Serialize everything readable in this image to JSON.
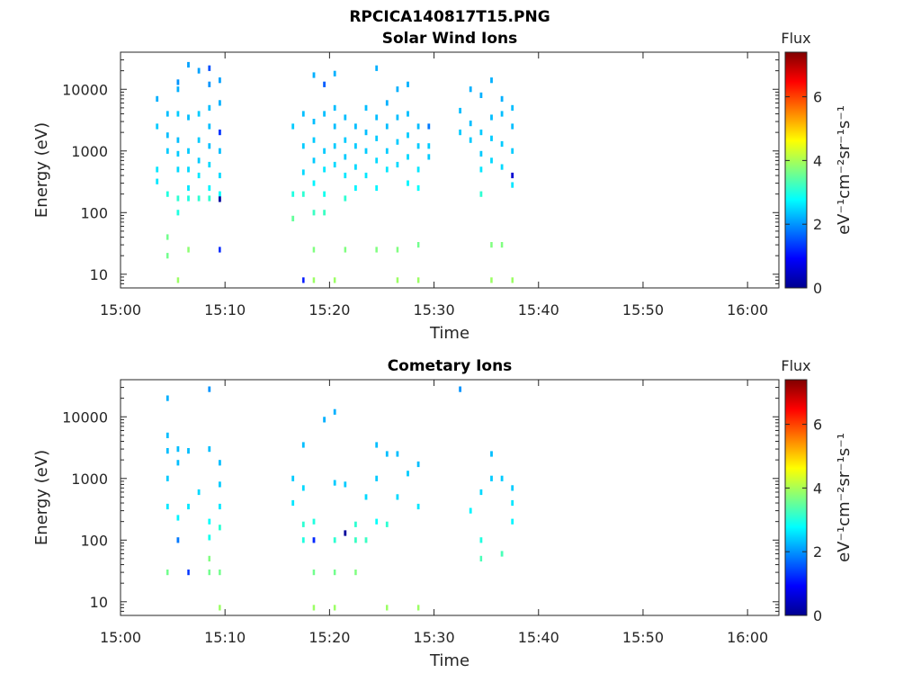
{
  "figure_title": "RPCICA140817T15.PNG",
  "chart_data": [
    {
      "type": "heatmap",
      "title": "Solar Wind Ions",
      "xlabel": "Time",
      "ylabel": "Energy (eV)",
      "xlim": [
        "15:00",
        "16:03"
      ],
      "x_ticks": [
        "15:00",
        "15:10",
        "15:20",
        "15:30",
        "15:40",
        "15:50",
        "16:00"
      ],
      "ylim": [
        6,
        40000
      ],
      "y_scale": "log",
      "y_ticks": [
        10,
        100,
        1000,
        10000
      ],
      "y_tick_labels": [
        "10",
        "100",
        "1000",
        "10000"
      ],
      "colorbar": {
        "label": "Flux",
        "unit_label": "eV⁻¹cm⁻²sr⁻¹s⁻¹",
        "range": [
          0,
          7.4
        ],
        "ticks": [
          0,
          2,
          4,
          6
        ],
        "colormap": "jet"
      },
      "points": [
        [
          "15:03",
          7000,
          2.2
        ],
        [
          "15:03",
          2500,
          2.4
        ],
        [
          "15:04",
          4000,
          2.3
        ],
        [
          "15:04",
          1800,
          2.3
        ],
        [
          "15:04",
          1000,
          2.4
        ],
        [
          "15:03",
          500,
          2.6
        ],
        [
          "15:03",
          320,
          2.6
        ],
        [
          "15:04",
          200,
          3.0
        ],
        [
          "15:04",
          20,
          3.6
        ],
        [
          "15:04",
          40,
          3.6
        ],
        [
          "15:05",
          10000,
          2.2
        ],
        [
          "15:05",
          13000,
          2.0
        ],
        [
          "15:05",
          4000,
          2.4
        ],
        [
          "15:05",
          1500,
          2.3
        ],
        [
          "15:05",
          900,
          2.4
        ],
        [
          "15:05",
          500,
          2.5
        ],
        [
          "15:05",
          170,
          3.1
        ],
        [
          "15:05",
          100,
          3.0
        ],
        [
          "15:05",
          8,
          3.9
        ],
        [
          "15:06",
          25000,
          2.1
        ],
        [
          "15:06",
          3500,
          2.3
        ],
        [
          "15:06",
          1000,
          2.4
        ],
        [
          "15:06",
          500,
          2.5
        ],
        [
          "15:06",
          250,
          2.6
        ],
        [
          "15:06",
          170,
          3.0
        ],
        [
          "15:06",
          25,
          3.8
        ],
        [
          "15:07",
          20000,
          2.1
        ],
        [
          "15:07",
          4000,
          2.4
        ],
        [
          "15:07",
          1500,
          2.4
        ],
        [
          "15:07",
          700,
          2.4
        ],
        [
          "15:07",
          400,
          2.6
        ],
        [
          "15:07",
          170,
          3.1
        ],
        [
          "15:08",
          12000,
          2.0
        ],
        [
          "15:08",
          5000,
          2.3
        ],
        [
          "15:08",
          2500,
          2.3
        ],
        [
          "15:08",
          1200,
          2.3
        ],
        [
          "15:08",
          600,
          2.5
        ],
        [
          "15:08",
          250,
          2.7
        ],
        [
          "15:08",
          170,
          3.1
        ],
        [
          "15:08",
          22000,
          1.5
        ],
        [
          "15:09",
          2000,
          1.3
        ],
        [
          "15:09",
          1000,
          2.3
        ],
        [
          "15:09",
          400,
          2.5
        ],
        [
          "15:09",
          200,
          2.8
        ],
        [
          "15:09",
          165,
          0.2
        ],
        [
          "15:09",
          25,
          1.2
        ],
        [
          "15:09",
          14000,
          2.1
        ],
        [
          "15:09",
          6000,
          2.2
        ],
        [
          "15:16",
          2500,
          2.4
        ],
        [
          "15:16",
          200,
          3.0
        ],
        [
          "15:16",
          80,
          3.5
        ],
        [
          "15:17",
          4000,
          2.3
        ],
        [
          "15:17",
          1200,
          2.4
        ],
        [
          "15:17",
          450,
          2.5
        ],
        [
          "15:17",
          200,
          3.1
        ],
        [
          "15:17",
          8,
          1.1
        ],
        [
          "15:18",
          17000,
          2.2
        ],
        [
          "15:18",
          3000,
          2.3
        ],
        [
          "15:18",
          1500,
          2.4
        ],
        [
          "15:18",
          700,
          2.4
        ],
        [
          "15:18",
          300,
          2.7
        ],
        [
          "15:18",
          100,
          3.2
        ],
        [
          "15:18",
          8,
          3.9
        ],
        [
          "15:18",
          25,
          3.7
        ],
        [
          "15:19",
          12000,
          1.6
        ],
        [
          "15:19",
          4000,
          2.3
        ],
        [
          "15:19",
          1000,
          2.4
        ],
        [
          "15:19",
          500,
          2.6
        ],
        [
          "15:19",
          200,
          2.9
        ],
        [
          "15:19",
          100,
          3.2
        ],
        [
          "15:20",
          18000,
          2.2
        ],
        [
          "15:20",
          5000,
          2.3
        ],
        [
          "15:20",
          2500,
          2.3
        ],
        [
          "15:20",
          1200,
          2.4
        ],
        [
          "15:20",
          600,
          2.5
        ],
        [
          "15:20",
          8,
          3.9
        ],
        [
          "15:21",
          3500,
          2.3
        ],
        [
          "15:21",
          1500,
          2.4
        ],
        [
          "15:21",
          800,
          2.4
        ],
        [
          "15:21",
          400,
          2.6
        ],
        [
          "15:21",
          170,
          3.1
        ],
        [
          "15:21",
          25,
          3.7
        ],
        [
          "15:22",
          2500,
          2.3
        ],
        [
          "15:22",
          1200,
          2.4
        ],
        [
          "15:22",
          550,
          2.5
        ],
        [
          "15:22",
          250,
          2.7
        ],
        [
          "15:23",
          5000,
          2.3
        ],
        [
          "15:23",
          2000,
          2.3
        ],
        [
          "15:23",
          1000,
          2.4
        ],
        [
          "15:23",
          400,
          2.6
        ],
        [
          "15:24",
          22000,
          2.2
        ],
        [
          "15:24",
          3500,
          2.3
        ],
        [
          "15:24",
          1600,
          2.4
        ],
        [
          "15:24",
          700,
          2.5
        ],
        [
          "15:24",
          250,
          2.7
        ],
        [
          "15:24",
          25,
          3.7
        ],
        [
          "15:25",
          6000,
          2.2
        ],
        [
          "15:25",
          2500,
          2.3
        ],
        [
          "15:25",
          1000,
          2.4
        ],
        [
          "15:25",
          500,
          2.6
        ],
        [
          "15:26",
          10000,
          2.2
        ],
        [
          "15:26",
          3500,
          2.3
        ],
        [
          "15:26",
          1400,
          2.4
        ],
        [
          "15:26",
          600,
          2.5
        ],
        [
          "15:26",
          25,
          3.7
        ],
        [
          "15:26",
          8,
          3.9
        ],
        [
          "15:27",
          12000,
          2.2
        ],
        [
          "15:27",
          4000,
          2.3
        ],
        [
          "15:27",
          1800,
          2.4
        ],
        [
          "15:27",
          800,
          2.5
        ],
        [
          "15:27",
          300,
          2.7
        ],
        [
          "15:28",
          2500,
          2.3
        ],
        [
          "15:28",
          1200,
          2.4
        ],
        [
          "15:28",
          500,
          2.6
        ],
        [
          "15:28",
          250,
          2.8
        ],
        [
          "15:28",
          30,
          3.6
        ],
        [
          "15:28",
          8,
          3.9
        ],
        [
          "15:29",
          2500,
          1.8
        ],
        [
          "15:29",
          1200,
          2.4
        ],
        [
          "15:29",
          800,
          2.4
        ],
        [
          "15:32",
          4500,
          2.3
        ],
        [
          "15:32",
          2000,
          2.4
        ],
        [
          "15:33",
          10000,
          2.2
        ],
        [
          "15:33",
          2800,
          2.3
        ],
        [
          "15:33",
          1500,
          2.4
        ],
        [
          "15:34",
          8000,
          2.2
        ],
        [
          "15:34",
          2000,
          2.4
        ],
        [
          "15:34",
          900,
          2.4
        ],
        [
          "15:34",
          500,
          2.6
        ],
        [
          "15:34",
          200,
          3.1
        ],
        [
          "15:35",
          14000,
          2.2
        ],
        [
          "15:35",
          3500,
          2.3
        ],
        [
          "15:35",
          1600,
          2.4
        ],
        [
          "15:35",
          700,
          2.5
        ],
        [
          "15:35",
          8,
          3.9
        ],
        [
          "15:35",
          30,
          3.7
        ],
        [
          "15:36",
          7000,
          2.2
        ],
        [
          "15:36",
          4000,
          2.3
        ],
        [
          "15:36",
          1300,
          2.4
        ],
        [
          "15:36",
          550,
          2.5
        ],
        [
          "15:36",
          30,
          3.7
        ],
        [
          "15:37",
          5000,
          2.3
        ],
        [
          "15:37",
          2500,
          2.3
        ],
        [
          "15:37",
          1000,
          2.4
        ],
        [
          "15:37",
          400,
          0.6
        ],
        [
          "15:37",
          8,
          3.9
        ],
        [
          "15:37",
          280,
          2.6
        ]
      ]
    },
    {
      "type": "heatmap",
      "title": "Cometary Ions",
      "xlabel": "Time",
      "ylabel": "Energy (eV)",
      "xlim": [
        "15:00",
        "16:03"
      ],
      "x_ticks": [
        "15:00",
        "15:10",
        "15:20",
        "15:30",
        "15:40",
        "15:50",
        "16:00"
      ],
      "ylim": [
        6,
        40000
      ],
      "y_scale": "log",
      "y_ticks": [
        10,
        100,
        1000,
        10000
      ],
      "y_tick_labels": [
        "10",
        "100",
        "1000",
        "10000"
      ],
      "colorbar": {
        "label": "Flux",
        "unit_label": "eV⁻¹cm⁻²sr⁻¹s⁻¹",
        "range": [
          0,
          7.4
        ],
        "ticks": [
          0,
          2,
          4,
          6
        ],
        "colormap": "jet"
      },
      "points": [
        [
          "15:04",
          20000,
          2.2
        ],
        [
          "15:04",
          5000,
          2.3
        ],
        [
          "15:04",
          2800,
          2.3
        ],
        [
          "15:04",
          1000,
          2.4
        ],
        [
          "15:05",
          1800,
          2.3
        ],
        [
          "15:04",
          350,
          2.6
        ],
        [
          "15:04",
          30,
          3.6
        ],
        [
          "15:05",
          230,
          2.7
        ],
        [
          "15:05",
          100,
          1.8
        ],
        [
          "15:05",
          3000,
          2.3
        ],
        [
          "15:06",
          350,
          2.6
        ],
        [
          "15:06",
          30,
          1.3
        ],
        [
          "15:06",
          2800,
          2.3
        ],
        [
          "15:07",
          600,
          2.5
        ],
        [
          "15:08",
          110,
          2.9
        ],
        [
          "15:08",
          3000,
          2.3
        ],
        [
          "15:08",
          28000,
          2.0
        ],
        [
          "15:08",
          200,
          2.8
        ],
        [
          "15:08",
          30,
          3.6
        ],
        [
          "15:08",
          50,
          3.7
        ],
        [
          "15:09",
          350,
          2.6
        ],
        [
          "15:09",
          800,
          2.4
        ],
        [
          "15:09",
          1800,
          2.3
        ],
        [
          "15:09",
          8,
          3.9
        ],
        [
          "15:09",
          30,
          3.6
        ],
        [
          "15:09",
          160,
          3.1
        ],
        [
          "15:16",
          1000,
          2.4
        ],
        [
          "15:16",
          400,
          2.6
        ],
        [
          "15:17",
          700,
          2.5
        ],
        [
          "15:17",
          100,
          3.0
        ],
        [
          "15:17",
          3500,
          2.3
        ],
        [
          "15:17",
          180,
          3.1
        ],
        [
          "15:18",
          100,
          1.2
        ],
        [
          "15:18",
          200,
          3.0
        ],
        [
          "15:18",
          8,
          3.9
        ],
        [
          "15:18",
          30,
          3.6
        ],
        [
          "15:19",
          9000,
          2.2
        ],
        [
          "15:20",
          12000,
          2.2
        ],
        [
          "15:20",
          850,
          2.4
        ],
        [
          "15:20",
          100,
          3.1
        ],
        [
          "15:20",
          30,
          3.6
        ],
        [
          "15:20",
          8,
          3.9
        ],
        [
          "15:21",
          800,
          2.4
        ],
        [
          "15:21",
          130,
          0.2
        ],
        [
          "15:22",
          180,
          3.1
        ],
        [
          "15:22",
          100,
          3.2
        ],
        [
          "15:22",
          30,
          3.7
        ],
        [
          "15:23",
          100,
          3.2
        ],
        [
          "15:23",
          500,
          2.5
        ],
        [
          "15:24",
          3500,
          2.3
        ],
        [
          "15:24",
          1000,
          2.4
        ],
        [
          "15:24",
          200,
          2.8
        ],
        [
          "15:25",
          2500,
          2.3
        ],
        [
          "15:25",
          180,
          3.1
        ],
        [
          "15:25",
          8,
          3.9
        ],
        [
          "15:26",
          2500,
          2.3
        ],
        [
          "15:26",
          500,
          2.5
        ],
        [
          "15:27",
          1200,
          2.4
        ],
        [
          "15:28",
          350,
          2.6
        ],
        [
          "15:28",
          8,
          3.9
        ],
        [
          "15:28",
          1700,
          2.3
        ],
        [
          "15:32",
          28000,
          2.0
        ],
        [
          "15:33",
          300,
          2.7
        ],
        [
          "15:34",
          600,
          2.5
        ],
        [
          "15:34",
          100,
          3.0
        ],
        [
          "15:34",
          50,
          3.3
        ],
        [
          "15:35",
          2500,
          2.3
        ],
        [
          "15:35",
          1000,
          2.4
        ],
        [
          "15:36",
          60,
          3.3
        ],
        [
          "15:36",
          1000,
          2.4
        ],
        [
          "15:37",
          700,
          2.4
        ],
        [
          "15:37",
          400,
          2.6
        ],
        [
          "15:37",
          200,
          2.7
        ]
      ]
    }
  ]
}
